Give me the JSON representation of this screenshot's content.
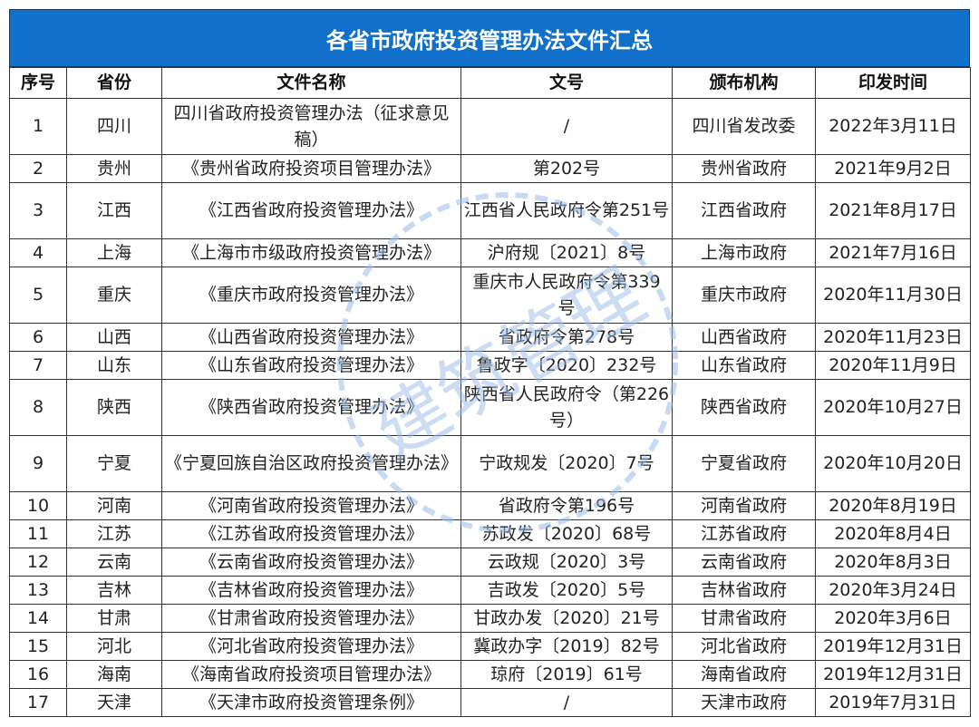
{
  "title": "各省市政府投资管理办法文件汇总",
  "watermark": "建筑管理",
  "colors": {
    "title_bar": "#1170c9",
    "watermark": "#9bbbe6"
  },
  "headers": [
    "序号",
    "省份",
    "文件名称",
    "文号",
    "颁布机构",
    "印发时间"
  ],
  "rows": [
    {
      "no": "1",
      "province": "四川",
      "name": "四川省政府投资管理办法（征求意见稿）",
      "doc_no": "/",
      "issuer": "四川省发改委",
      "date": "2022年3月11日",
      "tall": true
    },
    {
      "no": "2",
      "province": "贵州",
      "name": "《贵州省政府投资项目管理办法》",
      "doc_no": "第202号",
      "issuer": "贵州省政府",
      "date": "2021年9月2日"
    },
    {
      "no": "3",
      "province": "江西",
      "name": "《江西省政府投资管理办法》",
      "doc_no": "江西省人民政府令第251号",
      "issuer": "江西省政府",
      "date": "2021年8月17日",
      "tall": true
    },
    {
      "no": "4",
      "province": "上海",
      "name": "《上海市市级政府投资管理办法》",
      "doc_no": "沪府规〔2021〕8号",
      "issuer": "上海市政府",
      "date": "2021年7月16日"
    },
    {
      "no": "5",
      "province": "重庆",
      "name": "《重庆市政府投资管理办法》",
      "doc_no": "重庆市人民政府令第339 号",
      "issuer": "重庆市政府",
      "date": "2020年11月30日",
      "tall": true
    },
    {
      "no": "6",
      "province": "山西",
      "name": "《山西省政府投资管理办法》",
      "doc_no": "省政府令第278号",
      "issuer": "山西省政府",
      "date": "2020年11月23日"
    },
    {
      "no": "7",
      "province": "山东",
      "name": "《山东省政府投资管理办法》",
      "doc_no": "鲁政字〔2020〕232号",
      "issuer": "山东省政府",
      "date": "2020年11月9日"
    },
    {
      "no": "8",
      "province": "陕西",
      "name": "《陕西省政府投资管理办法》",
      "doc_no": "陕西省人民政府令（第226号）",
      "issuer": "陕西省政府",
      "date": "2020年10月27日",
      "tall": true
    },
    {
      "no": "9",
      "province": "宁夏",
      "name": "《宁夏回族自治区政府投资管理办法》",
      "doc_no": "宁政规发〔2020〕7号",
      "issuer": "宁夏省政府",
      "date": "2020年10月20日",
      "tall": true
    },
    {
      "no": "10",
      "province": "河南",
      "name": "《河南省政府投资管理办法》",
      "doc_no": "省政府令第196号",
      "issuer": "河南省政府",
      "date": "2020年8月19日"
    },
    {
      "no": "11",
      "province": "江苏",
      "name": "《江苏省政府投资管理办法》",
      "doc_no": "苏政发〔2020〕68号",
      "issuer": "江苏省政府",
      "date": "2020年8月4日"
    },
    {
      "no": "12",
      "province": "云南",
      "name": "《云南省政府投资管理办法》",
      "doc_no": "云政规〔2020〕3号",
      "issuer": "云南省政府",
      "date": "2020年8月3日"
    },
    {
      "no": "13",
      "province": "吉林",
      "name": "《吉林省政府投资管理办法》",
      "doc_no": "吉政发〔2020〕5号",
      "issuer": "吉林省政府",
      "date": "2020年3月24日"
    },
    {
      "no": "14",
      "province": "甘肃",
      "name": "《甘肃省政府投资管理办法》",
      "doc_no": "甘政办发〔2020〕21号",
      "issuer": "甘肃省政府",
      "date": "2020年3月6日"
    },
    {
      "no": "15",
      "province": "河北",
      "name": "《河北省政府投资管理办法》",
      "doc_no": "冀政办字〔2019〕82号",
      "issuer": "河北省政府",
      "date": "2019年12月31日"
    },
    {
      "no": "16",
      "province": "海南",
      "name": "《海南省政府投资项目管理办法》",
      "doc_no": "琼府〔2019〕61号",
      "issuer": "海南省政府",
      "date": "2019年12月31日"
    },
    {
      "no": "17",
      "province": "天津",
      "name": "《天津市政府投资管理条例》",
      "doc_no": "/",
      "issuer": "天津市政府",
      "date": "2019年7月31日"
    }
  ]
}
